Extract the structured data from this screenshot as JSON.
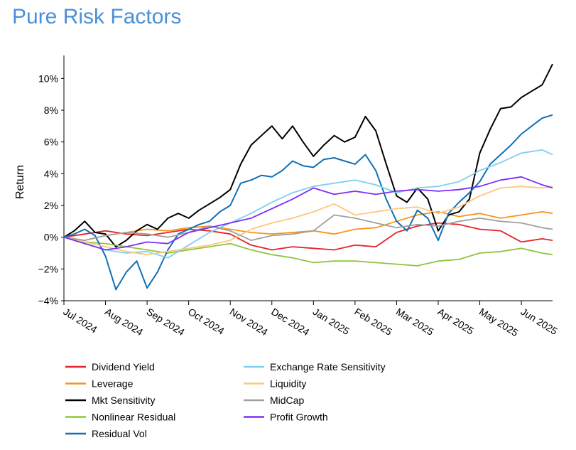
{
  "title": "Pure Risk Factors",
  "chart_data": {
    "type": "line",
    "title": "Pure Risk Factors",
    "xlabel": "",
    "ylabel": "Return",
    "ylim": [
      -4,
      11
    ],
    "y_ticks": [
      {
        "value": -4,
        "label": "−4%"
      },
      {
        "value": -2,
        "label": "−2%"
      },
      {
        "value": 0,
        "label": "0%"
      },
      {
        "value": 2,
        "label": "2%"
      },
      {
        "value": 4,
        "label": "4%"
      },
      {
        "value": 6,
        "label": "6%"
      },
      {
        "value": 8,
        "label": "8%"
      },
      {
        "value": 10,
        "label": "10%"
      }
    ],
    "x_ticks": [
      "Jul 2024",
      "Aug 2024",
      "Sep 2024",
      "Oct 2024",
      "Nov 2024",
      "Dec 2024",
      "Jan 2025",
      "Feb 2025",
      "Mar 2025",
      "Apr 2025",
      "May 2025",
      "Jun 2025"
    ],
    "x_range_months": [
      0,
      11.75
    ],
    "grid": false,
    "legend_placement": "bottom",
    "series": [
      {
        "name": "Dividend Yield",
        "color": "#e8232a",
        "x": [
          0,
          0.5,
          1,
          1.5,
          2,
          2.5,
          3,
          3.5,
          4,
          4.5,
          5,
          5.5,
          6,
          6.5,
          7,
          7.5,
          8,
          8.5,
          9,
          9.5,
          10,
          10.5,
          11,
          11.5,
          11.75
        ],
        "y": [
          0,
          0.2,
          0.4,
          0.2,
          0.1,
          0.3,
          0.5,
          0.4,
          0.2,
          -0.5,
          -0.8,
          -0.6,
          -0.7,
          -0.8,
          -0.5,
          -0.6,
          0.3,
          0.7,
          0.9,
          0.8,
          0.5,
          0.4,
          -0.3,
          -0.1,
          -0.2
        ]
      },
      {
        "name": "Leverage",
        "color": "#f7941d",
        "x": [
          0,
          0.5,
          1,
          1.5,
          2,
          2.5,
          3,
          3.5,
          4,
          4.5,
          5,
          5.5,
          6,
          6.5,
          7,
          7.5,
          8,
          8.5,
          9,
          9.5,
          10,
          10.5,
          11,
          11.5,
          11.75
        ],
        "y": [
          0,
          -0.2,
          0.1,
          0.3,
          0.5,
          0.4,
          0.6,
          0.7,
          0.5,
          0.3,
          0.2,
          0.3,
          0.4,
          0.2,
          0.5,
          0.6,
          1.0,
          1.4,
          1.6,
          1.3,
          1.5,
          1.2,
          1.4,
          1.6,
          1.5
        ]
      },
      {
        "name": "Mkt Sensitivity",
        "color": "#000000",
        "x": [
          0,
          0.25,
          0.5,
          0.75,
          1,
          1.25,
          1.5,
          1.75,
          2,
          2.25,
          2.5,
          2.75,
          3,
          3.25,
          3.5,
          3.75,
          4,
          4.25,
          4.5,
          4.75,
          5,
          5.25,
          5.5,
          5.75,
          6,
          6.25,
          6.5,
          6.75,
          7,
          7.25,
          7.5,
          7.75,
          8,
          8.25,
          8.5,
          8.75,
          9,
          9.25,
          9.5,
          9.75,
          10,
          10.25,
          10.5,
          10.75,
          11,
          11.25,
          11.5,
          11.75
        ],
        "y": [
          0,
          0.4,
          1.0,
          0.3,
          0.2,
          -0.6,
          -0.2,
          0.4,
          0.8,
          0.5,
          1.2,
          1.5,
          1.2,
          1.7,
          2.1,
          2.5,
          3.0,
          4.6,
          5.8,
          6.4,
          7.0,
          6.2,
          7.0,
          6.0,
          5.1,
          5.8,
          6.4,
          6.0,
          6.3,
          7.6,
          6.7,
          4.6,
          2.6,
          2.2,
          3.1,
          2.4,
          0.4,
          1.4,
          1.6,
          2.4,
          5.3,
          6.8,
          8.1,
          8.2,
          8.8,
          9.2,
          9.6,
          10.9
        ]
      },
      {
        "name": "Nonlinear Residual",
        "color": "#8dc63f",
        "x": [
          0,
          0.5,
          1,
          1.5,
          2,
          2.5,
          3,
          3.5,
          4,
          4.5,
          5,
          5.5,
          6,
          6.5,
          7,
          7.5,
          8,
          8.5,
          9,
          9.5,
          10,
          10.5,
          11,
          11.5,
          11.75
        ],
        "y": [
          0,
          -0.3,
          -0.4,
          -0.6,
          -0.8,
          -1.0,
          -0.8,
          -0.6,
          -0.4,
          -0.8,
          -1.1,
          -1.3,
          -1.6,
          -1.5,
          -1.5,
          -1.6,
          -1.7,
          -1.8,
          -1.5,
          -1.4,
          -1.0,
          -0.9,
          -0.7,
          -1.0,
          -1.1
        ]
      },
      {
        "name": "Residual Vol",
        "color": "#1170b5",
        "x": [
          0,
          0.25,
          0.5,
          0.75,
          1,
          1.25,
          1.5,
          1.75,
          2,
          2.25,
          2.5,
          2.75,
          3,
          3.25,
          3.5,
          3.75,
          4,
          4.25,
          4.5,
          4.75,
          5,
          5.25,
          5.5,
          5.75,
          6,
          6.25,
          6.5,
          6.75,
          7,
          7.25,
          7.5,
          7.75,
          8,
          8.25,
          8.5,
          8.75,
          9,
          9.25,
          9.5,
          9.75,
          10,
          10.25,
          10.5,
          10.75,
          11,
          11.25,
          11.5,
          11.75
        ],
        "y": [
          0,
          0.2,
          0.5,
          0.1,
          -1.2,
          -3.3,
          -2.2,
          -1.5,
          -3.2,
          -2.2,
          -0.8,
          0.2,
          0.5,
          0.8,
          1.0,
          1.6,
          2.0,
          3.4,
          3.6,
          3.9,
          3.8,
          4.2,
          4.8,
          4.5,
          4.4,
          4.9,
          5.0,
          4.8,
          4.6,
          5.2,
          4.2,
          2.4,
          1.0,
          0.4,
          1.7,
          1.2,
          -0.2,
          1.5,
          2.2,
          2.8,
          3.5,
          4.6,
          5.2,
          5.8,
          6.5,
          7.0,
          7.5,
          7.7
        ]
      },
      {
        "name": "Exchange Rate Sensitivity",
        "color": "#7fd0f0",
        "x": [
          0,
          0.5,
          1,
          1.5,
          2,
          2.5,
          3,
          3.5,
          4,
          4.5,
          5,
          5.5,
          6,
          6.5,
          7,
          7.5,
          8,
          8.5,
          9,
          9.5,
          10,
          10.5,
          11,
          11.5,
          11.75
        ],
        "y": [
          0,
          -0.4,
          -0.8,
          -1.0,
          -0.9,
          -1.3,
          -0.5,
          0.3,
          0.9,
          1.5,
          2.2,
          2.8,
          3.2,
          3.4,
          3.6,
          3.3,
          2.8,
          3.1,
          3.2,
          3.5,
          4.2,
          4.7,
          5.3,
          5.5,
          5.2
        ]
      },
      {
        "name": "Liquidity",
        "color": "#fdc77f",
        "x": [
          0,
          0.5,
          1,
          1.5,
          2,
          2.5,
          3,
          3.5,
          4,
          4.5,
          5,
          5.5,
          6,
          6.5,
          7,
          7.5,
          8,
          8.5,
          9,
          9.5,
          10,
          10.5,
          11,
          11.5,
          11.75
        ],
        "y": [
          0,
          -0.3,
          -0.6,
          -0.9,
          -1.1,
          -0.9,
          -0.7,
          -0.5,
          -0.2,
          0.5,
          0.9,
          1.2,
          1.6,
          2.1,
          1.4,
          1.6,
          1.8,
          1.9,
          1.5,
          1.9,
          2.6,
          3.1,
          3.2,
          3.1,
          3.2
        ]
      },
      {
        "name": "MidCap",
        "color": "#a0a0a0",
        "x": [
          0,
          0.5,
          1,
          1.5,
          2,
          2.5,
          3,
          3.5,
          4,
          4.5,
          5,
          5.5,
          6,
          6.5,
          7,
          7.5,
          8,
          8.5,
          9,
          9.5,
          10,
          10.5,
          11,
          11.5,
          11.75
        ],
        "y": [
          0,
          -0.2,
          0.1,
          0.3,
          0.2,
          0.0,
          0.3,
          0.7,
          0.4,
          -0.2,
          0.1,
          0.2,
          0.4,
          1.4,
          1.2,
          0.9,
          0.6,
          0.8,
          0.7,
          1.0,
          1.2,
          1.0,
          0.9,
          0.6,
          0.5
        ]
      },
      {
        "name": "Profit Growth",
        "color": "#7b2ff7",
        "x": [
          0,
          0.5,
          1,
          1.5,
          2,
          2.5,
          3,
          3.5,
          4,
          4.5,
          5,
          5.5,
          6,
          6.5,
          7,
          7.5,
          8,
          8.5,
          9,
          9.5,
          10,
          10.5,
          11,
          11.5,
          11.75
        ],
        "y": [
          0,
          -0.4,
          -0.8,
          -0.6,
          -0.3,
          -0.4,
          0.3,
          0.6,
          0.9,
          1.2,
          1.8,
          2.4,
          3.1,
          2.7,
          2.9,
          2.7,
          2.9,
          3.0,
          2.9,
          3.0,
          3.2,
          3.6,
          3.8,
          3.3,
          3.1
        ]
      }
    ]
  }
}
